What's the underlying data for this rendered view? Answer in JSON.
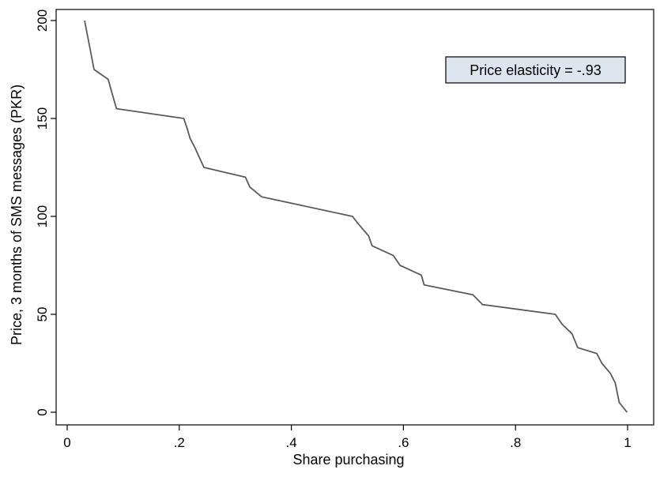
{
  "chart_data": {
    "type": "line",
    "title": "",
    "xlabel": "Share purchasing",
    "ylabel": "Price, 3 months of SMS messages (PKR)",
    "xlim": [
      0,
      1
    ],
    "ylim": [
      0,
      200
    ],
    "x_ticks": [
      0,
      0.2,
      0.4,
      0.6,
      0.8,
      1
    ],
    "x_tick_labels": [
      "0",
      ".2",
      ".4",
      ".6",
      ".8",
      "1"
    ],
    "y_ticks": [
      0,
      50,
      100,
      150,
      200
    ],
    "y_tick_labels": [
      "0",
      "50",
      "100",
      "150",
      "200"
    ],
    "grid": false,
    "annotation": "Price elasticity = -.93",
    "line_color": "#5a5a5a",
    "annotation_bg": "#dde6ee",
    "series": [
      {
        "points": [
          [
            0.031,
            200
          ],
          [
            0.048,
            175
          ],
          [
            0.073,
            170
          ],
          [
            0.083,
            160
          ],
          [
            0.088,
            155
          ],
          [
            0.208,
            150
          ],
          [
            0.214,
            145
          ],
          [
            0.219,
            140
          ],
          [
            0.228,
            135
          ],
          [
            0.244,
            125
          ],
          [
            0.318,
            120
          ],
          [
            0.326,
            115
          ],
          [
            0.347,
            110
          ],
          [
            0.509,
            100
          ],
          [
            0.52,
            96
          ],
          [
            0.538,
            90
          ],
          [
            0.544,
            85
          ],
          [
            0.582,
            80
          ],
          [
            0.594,
            75
          ],
          [
            0.632,
            70
          ],
          [
            0.637,
            65
          ],
          [
            0.724,
            60
          ],
          [
            0.741,
            55
          ],
          [
            0.871,
            50
          ],
          [
            0.883,
            45
          ],
          [
            0.901,
            40
          ],
          [
            0.911,
            33
          ],
          [
            0.945,
            30
          ],
          [
            0.954,
            25
          ],
          [
            0.969,
            20
          ],
          [
            0.978,
            15
          ],
          [
            0.985,
            5
          ],
          [
            0.999,
            0
          ]
        ]
      }
    ]
  }
}
